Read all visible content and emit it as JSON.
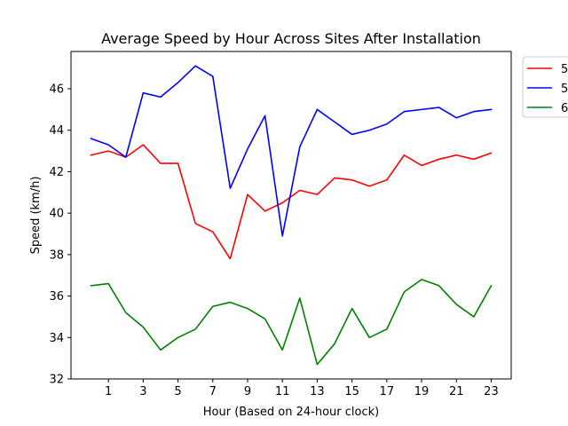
{
  "chart_data": {
    "type": "line",
    "title": "Average Speed by Hour Across Sites After Installation",
    "xlabel": "Hour (Based on 24-hour clock)",
    "ylabel": "Speed (km/h)",
    "xlim": [
      -1.15,
      24.15
    ],
    "ylim": [
      32,
      47.8
    ],
    "x_ticks": [
      1,
      3,
      5,
      7,
      9,
      11,
      13,
      15,
      17,
      19,
      21,
      23
    ],
    "y_ticks": [
      32,
      34,
      36,
      38,
      40,
      42,
      44,
      46
    ],
    "legend_position": "outside-top-right",
    "grid": false,
    "x": [
      0,
      1,
      2,
      3,
      4,
      5,
      6,
      7,
      8,
      9,
      10,
      11,
      12,
      13,
      14,
      15,
      16,
      17,
      18,
      19,
      20,
      21,
      22,
      23
    ],
    "series": [
      {
        "name": "5",
        "color": "#ff0000",
        "values": [
          42.8,
          43.0,
          42.7,
          43.3,
          42.4,
          42.4,
          39.5,
          39.1,
          37.8,
          40.9,
          40.1,
          40.5,
          41.1,
          40.9,
          41.7,
          41.6,
          41.3,
          41.6,
          42.8,
          42.3,
          42.6,
          42.8,
          42.6,
          42.9
        ]
      },
      {
        "name": "5",
        "color": "#0000ff",
        "values": [
          43.6,
          43.3,
          42.7,
          45.8,
          45.6,
          46.3,
          47.1,
          46.6,
          41.2,
          43.1,
          44.7,
          38.9,
          43.2,
          45.0,
          44.4,
          43.8,
          44.0,
          44.3,
          44.9,
          45.0,
          45.1,
          44.6,
          44.9,
          45.0
        ]
      },
      {
        "name": "6",
        "color": "#008000",
        "values": [
          36.5,
          36.6,
          35.2,
          34.5,
          33.4,
          34.0,
          34.4,
          35.5,
          35.7,
          35.4,
          34.9,
          33.4,
          35.9,
          32.7,
          33.7,
          35.4,
          34.0,
          34.4,
          36.2,
          36.8,
          36.5,
          35.6,
          35.0,
          36.5
        ]
      }
    ]
  }
}
